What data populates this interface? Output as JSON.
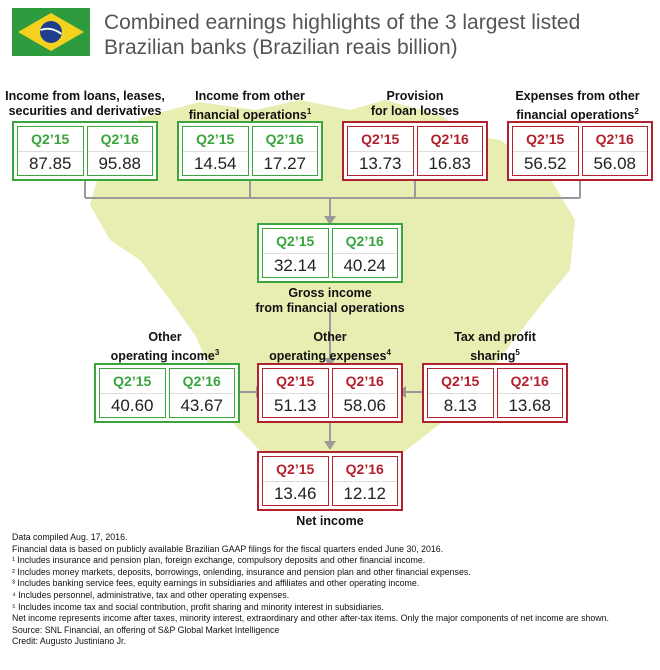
{
  "title": "Combined earnings highlights of the 3 largest listed Brazilian banks (Brazilian reais billion)",
  "colors": {
    "green": "#3aa43d",
    "red": "#b3202e",
    "map": "#e8edb2",
    "connector": "#9a9a9a"
  },
  "flag": {
    "name": "brazil-flag"
  },
  "period_labels": [
    "Q2’15",
    "Q2’16"
  ],
  "nodes": {
    "income_loans": {
      "label_lines": [
        "Income from loans, leases,",
        "securities and derivatives"
      ],
      "sup": "",
      "color": "green",
      "q215": "87.85",
      "q216": "95.88"
    },
    "income_other_fin": {
      "label_lines": [
        "Income from other",
        "financial operations"
      ],
      "sup": "1",
      "color": "green",
      "q215": "14.54",
      "q216": "17.27"
    },
    "provision": {
      "label_lines": [
        "Provision",
        "for loan losses"
      ],
      "sup": "",
      "color": "red",
      "q215": "13.73",
      "q216": "16.83"
    },
    "expenses_other_fin": {
      "label_lines": [
        "Expenses from other",
        "financial operations"
      ],
      "sup": "2",
      "color": "red",
      "q215": "56.52",
      "q216": "56.08"
    },
    "gross_income": {
      "label_lines": [
        "Gross income",
        "from financial operations"
      ],
      "sup": "",
      "color": "green",
      "q215": "32.14",
      "q216": "40.24"
    },
    "other_op_income": {
      "label_lines": [
        "Other",
        "operating income"
      ],
      "sup": "3",
      "color": "green",
      "q215": "40.60",
      "q216": "43.67"
    },
    "other_op_expenses": {
      "label_lines": [
        "Other",
        "operating expenses"
      ],
      "sup": "4",
      "color": "red",
      "q215": "51.13",
      "q216": "58.06"
    },
    "tax_profit": {
      "label_lines": [
        "Tax and profit",
        "sharing"
      ],
      "sup": "5",
      "color": "red",
      "q215": "8.13",
      "q216": "13.68"
    },
    "net_income": {
      "label_lines": [
        "Net income"
      ],
      "sup": "",
      "color": "red",
      "q215": "13.46",
      "q216": "12.12"
    }
  },
  "notes": [
    "Data compiled Aug. 17, 2016.",
    "Financial data is based on publicly available Brazilian GAAP filings for the fiscal quarters ended June 30, 2016.",
    "¹ Includes insurance and pension plan, foreign exchange, compulsory deposits and other financial income.",
    "² Includes money markets, deposits, borrowings, onlending, insurance and pension plan and other financial expenses.",
    "³ Includes banking service fees, equity earnings in subsidiaries and affiliates and other operating income.",
    "⁴ Includes personnel, administrative, tax and other operating expenses.",
    "⁵ Includes income tax and social contribution, profit sharing and minority interest in subsidiaries.",
    "Net income represents income after taxes, minority interest, extraordinary and other after-tax items. Only the major components of net income are shown.",
    "Source: SNL Financial, an offering of S&P Global Market Intelligence",
    "Credit: Augusto Justiniano Jr."
  ]
}
